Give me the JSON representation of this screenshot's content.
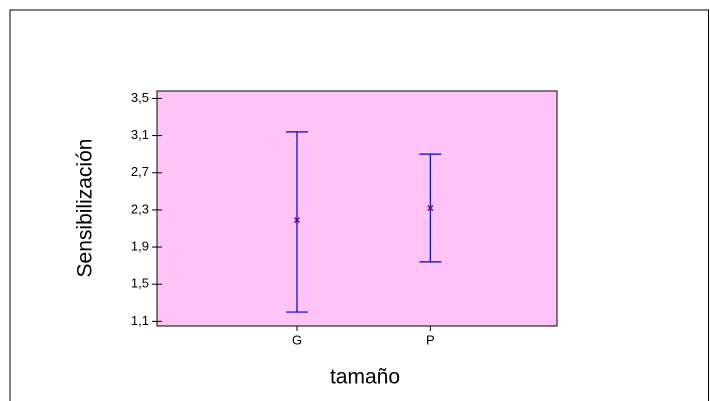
{
  "chart_data": {
    "type": "errorbar",
    "categories": [
      "G",
      "P"
    ],
    "values": [
      2.19,
      2.32
    ],
    "lower": [
      1.2,
      1.74
    ],
    "upper": [
      3.14,
      2.9
    ],
    "color": "#0000cc",
    "marker_color": "#800080",
    "background": "#ffc4f5",
    "xlabel": "tamaño",
    "ylabel": "Sensibilización",
    "ylim": [
      1.05,
      3.58
    ],
    "yticks": [
      {
        "value": 1.1,
        "label": "1,1"
      },
      {
        "value": 1.5,
        "label": "1,5"
      },
      {
        "value": 1.9,
        "label": "1,9"
      },
      {
        "value": 2.3,
        "label": "2,3"
      },
      {
        "value": 2.7,
        "label": "2,7"
      },
      {
        "value": 3.1,
        "label": "3,1"
      },
      {
        "value": 3.5,
        "label": "3,5"
      }
    ]
  }
}
